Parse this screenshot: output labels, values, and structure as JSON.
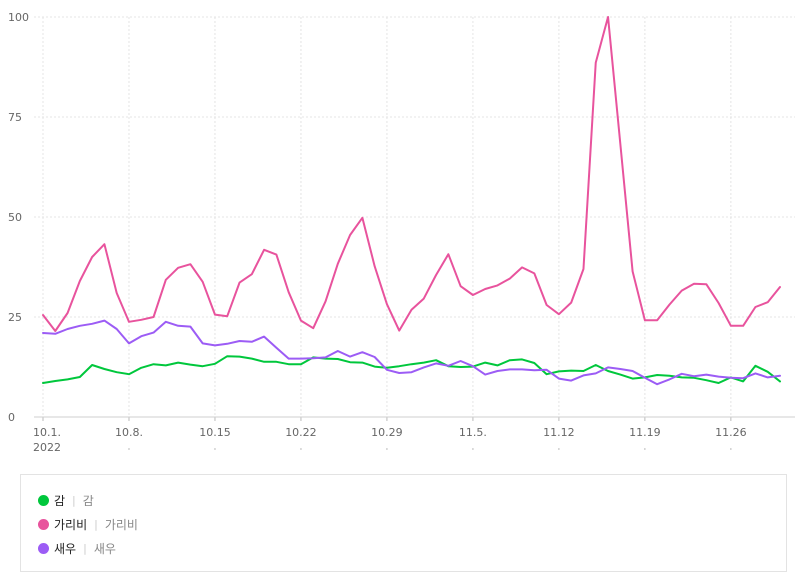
{
  "chart_data": {
    "type": "line",
    "ylim": [
      0,
      100
    ],
    "y_ticks": [
      "0",
      "25",
      "50",
      "75",
      "100"
    ],
    "x_tick_labels": [
      "10.1.",
      "10.8.",
      "10.15",
      "10.22",
      "10.29",
      "11.5.",
      "11.12",
      "11.19",
      "11.26"
    ],
    "x_first_year": "2022",
    "grid": true,
    "series": [
      {
        "name": "감",
        "color": "#00c73c",
        "values": [
          8.5,
          9,
          9.4,
          10,
          13,
          12,
          11.2,
          10.7,
          12.3,
          13.2,
          12.9,
          13.6,
          13.1,
          12.7,
          13.3,
          15.2,
          15.1,
          14.6,
          13.8,
          13.8,
          13.2,
          13.2,
          14.9,
          14.6,
          14.5,
          13.7,
          13.6,
          12.6,
          12.3,
          12.7,
          13.2,
          13.6,
          14.2,
          12.7,
          12.5,
          12.6,
          13.6,
          12.9,
          14.2,
          14.4,
          13.5,
          10.7,
          11.4,
          11.6,
          11.5,
          13,
          11.5,
          10.6,
          9.6,
          9.9,
          10.5,
          10.3,
          9.9,
          9.8,
          9.2,
          8.5,
          9.9,
          8.9,
          12.8,
          11.3,
          8.9
        ]
      },
      {
        "name": "가리비",
        "color": "#e8539d",
        "values": [
          25.5,
          21.5,
          26,
          34,
          40,
          43.2,
          31,
          23.8,
          24.3,
          25,
          34.3,
          37.3,
          38.2,
          33.8,
          25.6,
          25.2,
          33.6,
          35.7,
          41.8,
          40.6,
          31.2,
          24.1,
          22.2,
          28.9,
          38.3,
          45.5,
          49.8,
          37.7,
          28.2,
          21.6,
          26.8,
          29.6,
          35.5,
          40.7,
          32.7,
          30.5,
          32,
          32.9,
          34.6,
          37.4,
          35.9,
          28,
          25.7,
          28.6,
          37,
          88.6,
          100,
          68.3,
          36.4,
          24.2,
          24.2,
          28.1,
          31.6,
          33.3,
          33.2,
          28.5,
          22.8,
          22.8,
          27.5,
          28.7,
          32.5
        ]
      },
      {
        "name": "새우",
        "color": "#9c5cf5",
        "values": [
          21,
          20.8,
          22,
          22.8,
          23.3,
          24.1,
          22,
          18.4,
          20.2,
          21.1,
          23.8,
          22.8,
          22.6,
          18.4,
          17.9,
          18.3,
          19,
          18.8,
          20.1,
          17.3,
          14.6,
          14.6,
          14.7,
          14.9,
          16.5,
          15.1,
          16.2,
          15,
          11.8,
          11,
          11.2,
          12.4,
          13.4,
          12.8,
          14,
          12.7,
          10.6,
          11.5,
          11.9,
          11.9,
          11.7,
          11.8,
          9.6,
          9.1,
          10.4,
          10.9,
          12.4,
          12,
          11.5,
          9.8,
          8.2,
          9.4,
          10.8,
          10.2,
          10.6,
          10.1,
          9.8,
          9.7,
          10.9,
          9.9,
          10.3
        ]
      }
    ]
  },
  "legend": [
    {
      "name": "감",
      "sub": "감",
      "color": "#00c73c"
    },
    {
      "name": "가리비",
      "sub": "가리비",
      "color": "#e8539d"
    },
    {
      "name": "새우",
      "sub": "새우",
      "color": "#9c5cf5"
    }
  ],
  "legend_separator": "|"
}
